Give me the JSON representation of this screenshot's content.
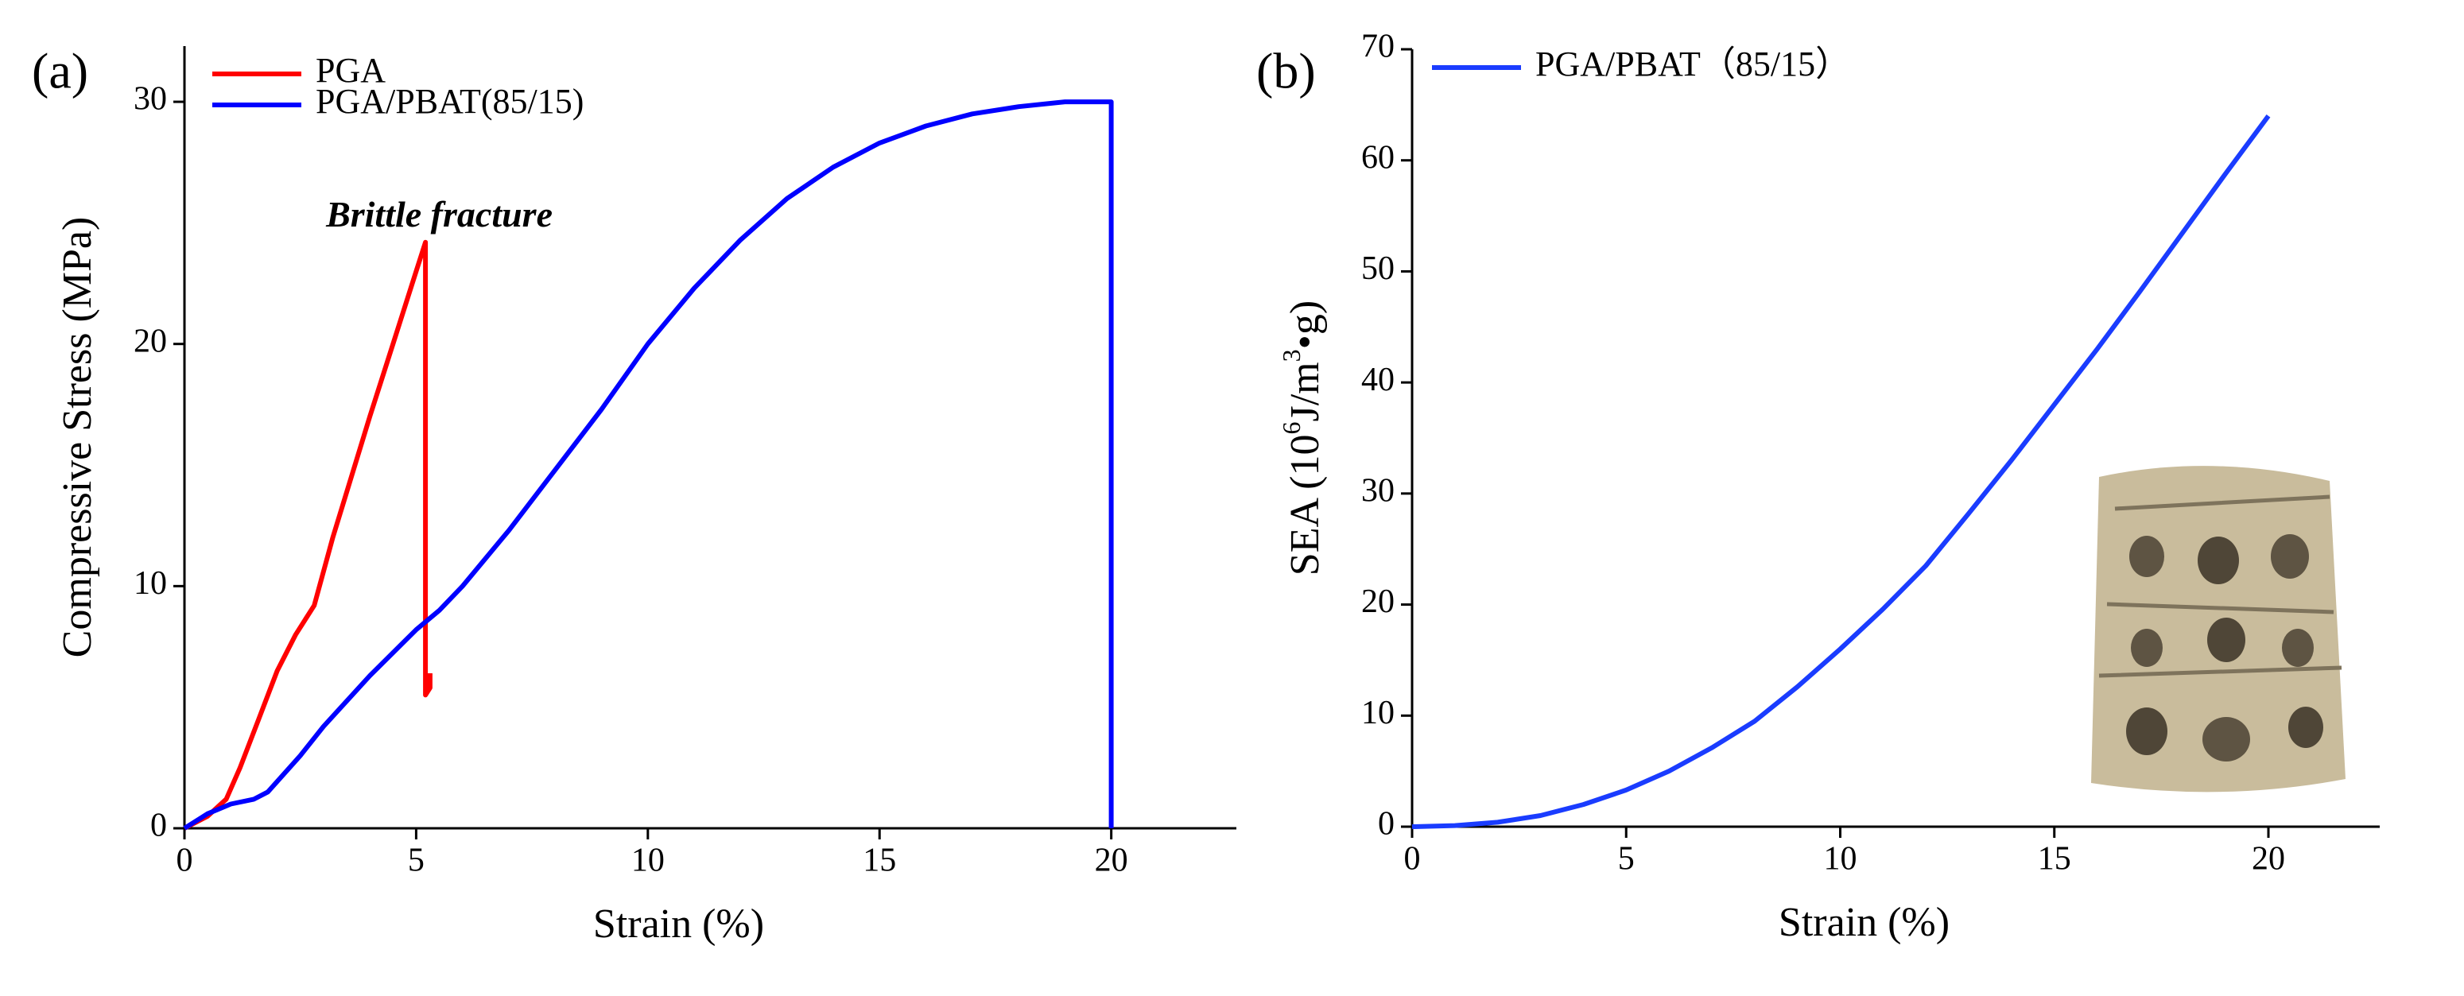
{
  "chart_data": [
    {
      "type": "line",
      "panel_label": "(a)",
      "xlabel": "Strain (%)",
      "ylabel": "Compressive Stress (MPa)",
      "xlim": [
        0,
        22.7
      ],
      "ylim": [
        0,
        32.3
      ],
      "xticks": [
        0,
        5,
        10,
        15,
        20
      ],
      "yticks": [
        0,
        10,
        20,
        30
      ],
      "legend": "upper left",
      "annotation": "Brittle fracture",
      "annotation_color": "#ff0000",
      "series": [
        {
          "name": "PGA",
          "color": "#ff0000",
          "x": [
            0,
            0.5,
            0.9,
            1.2,
            1.6,
            2.0,
            2.4,
            2.8,
            3.2,
            3.6,
            4.0,
            4.5,
            5.0,
            5.2,
            5.2,
            5.3,
            5.3
          ],
          "values": [
            0,
            0.5,
            1.2,
            2.5,
            4.5,
            6.5,
            8.0,
            9.2,
            12.0,
            14.5,
            17.0,
            20.0,
            23.0,
            24.2,
            5.5,
            5.8,
            6.4
          ]
        },
        {
          "name": "PGA/PBAT(85/15)",
          "color": "#0000ff",
          "x": [
            0,
            0.5,
            1,
            1.5,
            1.8,
            2.5,
            3,
            4,
            5,
            5.5,
            6,
            7,
            8,
            9,
            10,
            11,
            12,
            13,
            14,
            15,
            16,
            17,
            18,
            19,
            20,
            20
          ],
          "values": [
            0,
            0.6,
            1.0,
            1.2,
            1.5,
            3.0,
            4.2,
            6.3,
            8.2,
            9.0,
            10.0,
            12.3,
            14.8,
            17.3,
            20.0,
            22.3,
            24.3,
            26.0,
            27.3,
            28.3,
            29.0,
            29.5,
            29.8,
            30.0,
            30.0,
            0
          ]
        }
      ]
    },
    {
      "type": "line",
      "panel_label": "(b)",
      "xlabel": "Strain (%)",
      "ylabel": [
        "SEA (10",
        "6",
        "J/m",
        "3",
        "•g)"
      ],
      "xlim": [
        0,
        22.6
      ],
      "ylim": [
        0,
        70
      ],
      "xticks": [
        0,
        5,
        10,
        15,
        20
      ],
      "yticks": [
        0,
        10,
        20,
        30,
        40,
        50,
        60,
        70
      ],
      "legend": "upper left",
      "series": [
        {
          "name": "PGA/PBAT（85/15）",
          "color": "#1a3cff",
          "x": [
            0,
            1,
            2,
            3,
            4,
            5,
            6,
            7,
            8,
            9,
            10,
            11,
            12,
            13,
            14,
            15,
            16,
            17,
            18,
            19,
            20
          ],
          "values": [
            0,
            0.1,
            0.4,
            1.0,
            2.0,
            3.3,
            5.0,
            7.1,
            9.5,
            12.6,
            16.0,
            19.6,
            23.5,
            28.2,
            33.0,
            38.0,
            43.0,
            48.2,
            53.5,
            58.8,
            64.0
          ]
        }
      ]
    }
  ]
}
